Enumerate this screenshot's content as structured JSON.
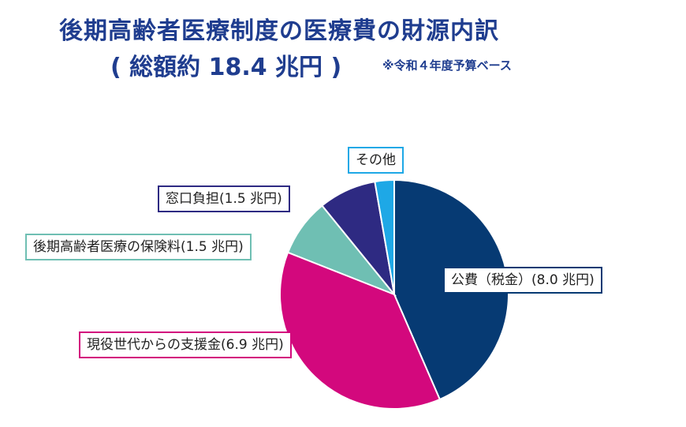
{
  "title": {
    "line1": "後期高齢者医療制度の医療費の財源内訳",
    "line2": "( 総額約 18.4 兆円 )",
    "note": "※令和４年度予算ベース"
  },
  "chart_data": {
    "type": "pie",
    "title": "後期高齢者医療制度の医療費の財源内訳",
    "total": 18.4,
    "unit": "兆円",
    "slices": [
      {
        "name": "公費（税金）",
        "value": 8.0,
        "label": "公費（税金）(8.0 兆円)",
        "color": "#063a73"
      },
      {
        "name": "現役世代からの支援金",
        "value": 6.9,
        "label": "現役世代からの支援金(6.9 兆円)",
        "color": "#d3087d"
      },
      {
        "name": "後期高齢者医療の保険料",
        "value": 1.5,
        "label": "後期高齢者医療の保険料(1.5 兆円)",
        "color": "#6fbfb3"
      },
      {
        "name": "窓口負担",
        "value": 1.5,
        "label": "窓口負担(1.5 兆円)",
        "color": "#2e2a82"
      },
      {
        "name": "その他",
        "value": 0.5,
        "label": "その他",
        "color": "#1ea8e6"
      }
    ],
    "start_angle_deg": 0,
    "direction": "clockwise"
  }
}
